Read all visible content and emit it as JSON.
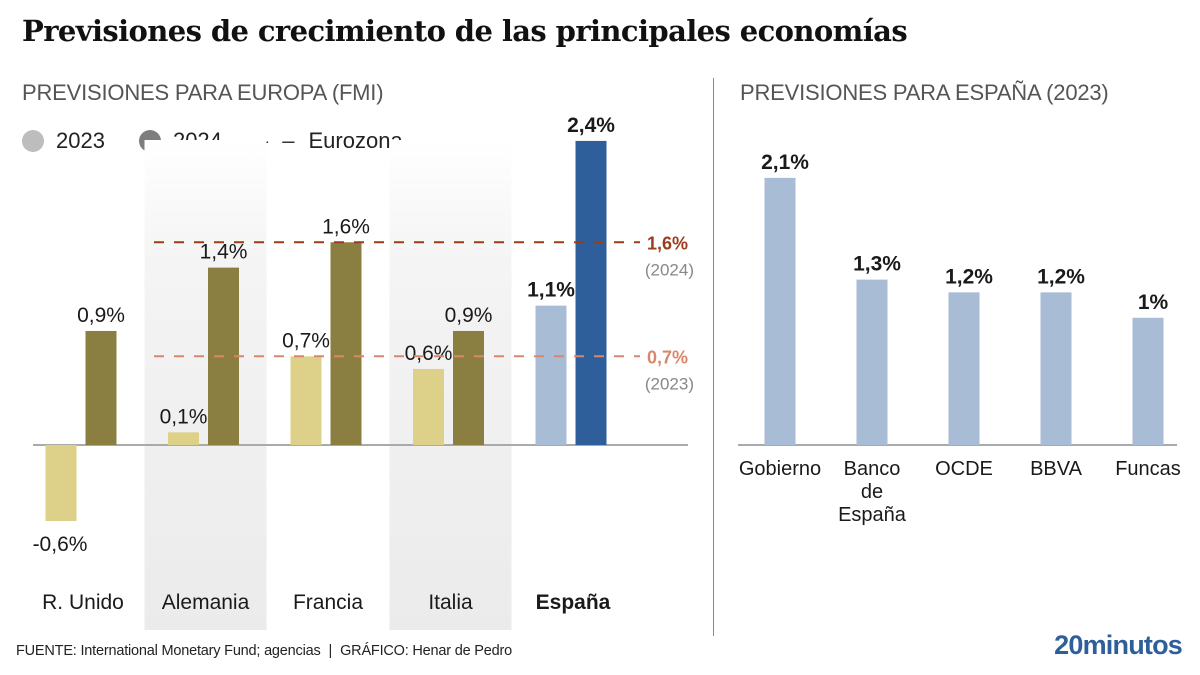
{
  "header": {
    "title": "Previsiones de crecimiento de las principales economías"
  },
  "colors": {
    "c2023_other": "#ddd18a",
    "c2024_other": "#8a7f40",
    "c2023_spain": "#a9bcd6",
    "c2024_spain": "#2f5f9a",
    "band": "#eeeeee",
    "eurozone_2024": "#9a3c1c",
    "eurozone_2023": "#d9876c",
    "baseline": "#aaaaaa",
    "legend_2023": "#bdbdbd",
    "legend_2024": "#7e7e7e"
  },
  "legend": {
    "items": [
      {
        "label": "2023"
      },
      {
        "label": "2024"
      },
      {
        "label": "Eurozona",
        "marker": "– –"
      }
    ]
  },
  "footer": {
    "source": "FUENTE: International Monetary Fund; agencias",
    "separator": "|",
    "credit": "GRÁFICO: Henar de Pedro",
    "logo": "20minutos"
  },
  "chart_data": [
    {
      "type": "bar",
      "title": "PREVISIONES PARA EUROPA (FMI)",
      "xlabel": "",
      "ylabel": "",
      "categories": [
        "R. Unido",
        "Alemania",
        "Francia",
        "Italia",
        "España"
      ],
      "highlight_category": "España",
      "shaded_categories": [
        "Alemania",
        "Italia"
      ],
      "series": [
        {
          "name": "2023",
          "values": [
            -0.6,
            0.1,
            0.7,
            0.6,
            1.1
          ],
          "labels": [
            "-0,6%",
            "0,1%",
            "0,7%",
            "0,6%",
            "1,1%"
          ]
        },
        {
          "name": "2024",
          "values": [
            0.9,
            1.4,
            1.6,
            0.9,
            2.4
          ],
          "labels": [
            "0,9%",
            "1,4%",
            "1,6%",
            "0,9%",
            "2,4%"
          ]
        }
      ],
      "reference_lines": [
        {
          "name": "Eurozona 2024",
          "value": 1.6,
          "label": "1,6%",
          "sublabel": "(2024)"
        },
        {
          "name": "Eurozona 2023",
          "value": 0.7,
          "label": "0,7%",
          "sublabel": "(2023)"
        }
      ],
      "ylim": [
        -0.6,
        2.4
      ],
      "grid": false,
      "legend_position": "top-left"
    },
    {
      "type": "bar",
      "title": "PREVISIONES PARA ESPAÑA (2023)",
      "xlabel": "",
      "ylabel": "",
      "categories": [
        "Gobierno",
        "Banco de España",
        "OCDE",
        "BBVA",
        "Funcas"
      ],
      "category_lines": [
        [
          "Gobierno"
        ],
        [
          "Banco",
          "de",
          "España"
        ],
        [
          "OCDE"
        ],
        [
          "BBVA"
        ],
        [
          "Funcas"
        ]
      ],
      "values": [
        2.1,
        1.3,
        1.2,
        1.2,
        1.0
      ],
      "labels": [
        "2,1%",
        "1,3%",
        "1,2%",
        "1,2%",
        "1%"
      ],
      "ylim": [
        0,
        2.1
      ],
      "grid": false
    }
  ]
}
